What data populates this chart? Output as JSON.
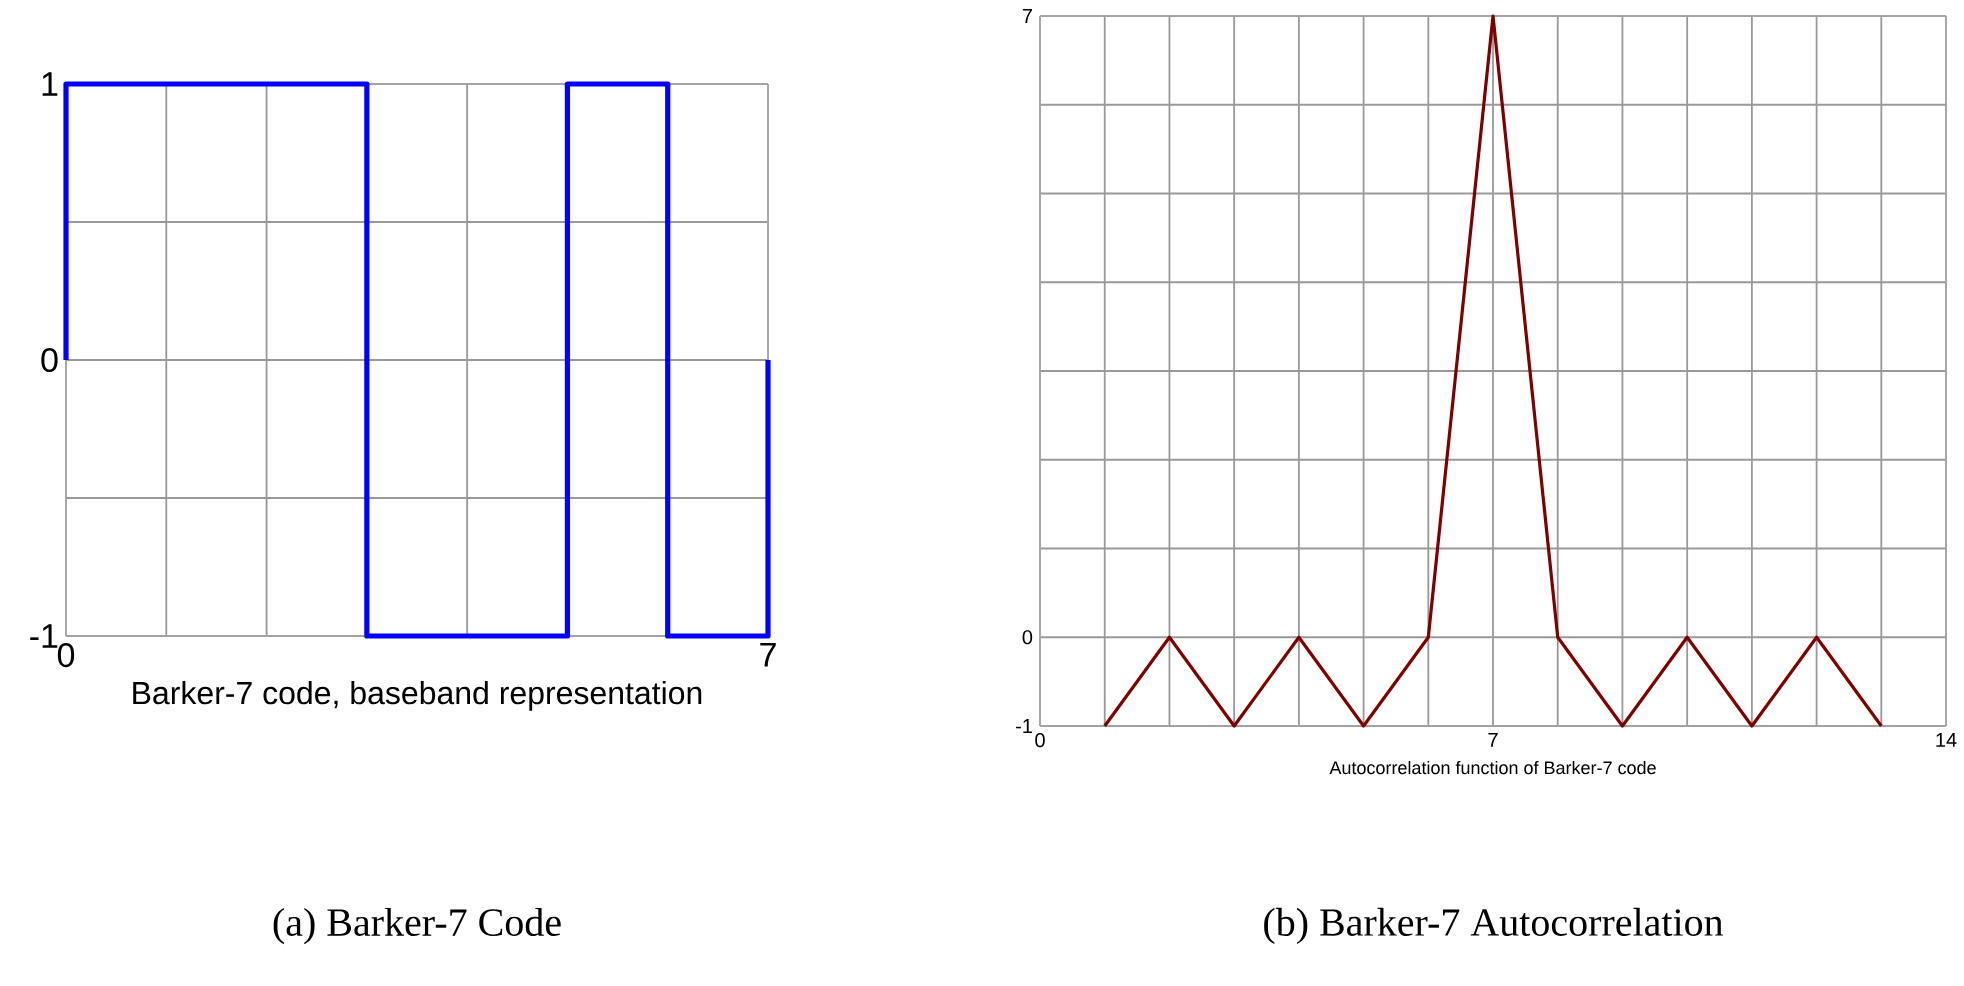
{
  "chart_data": [
    {
      "type": "line",
      "xlabel": "Barker-7 code, baseband representation",
      "annotations": [
        "(a) Barker-7 Code"
      ],
      "series": [
        {
          "color": "#0000ff",
          "x": [
            0,
            0,
            3,
            3,
            5,
            5,
            6,
            6,
            7,
            7
          ],
          "values": [
            0,
            1,
            1,
            -1,
            -1,
            1,
            1,
            -1,
            -1,
            0
          ]
        }
      ],
      "xlim": [
        0,
        7
      ],
      "ylim": [
        -1,
        1
      ],
      "xticks": [
        0,
        {
          "value": 1,
          "label": null
        },
        {
          "value": 2,
          "label": null
        },
        {
          "value": 3,
          "label": null
        },
        {
          "value": 4,
          "label": null
        },
        {
          "value": 5,
          "label": null
        },
        {
          "value": 6,
          "label": null
        },
        7
      ],
      "yticks": [
        -1,
        {
          "value": -0.5,
          "label": null
        },
        0,
        {
          "value": 0.5,
          "label": null
        },
        1
      ],
      "grid": true
    },
    {
      "type": "line",
      "xlabel": "Autocorrelation function of Barker-7 code",
      "annotations": [
        "(b) Barker-7 Autocorrelation"
      ],
      "series": [
        {
          "color": "#800000",
          "x": [
            1,
            2,
            3,
            4,
            5,
            6,
            7,
            8,
            9,
            10,
            11,
            12,
            13
          ],
          "values": [
            -1,
            0,
            -1,
            0,
            -1,
            0,
            7,
            0,
            -1,
            0,
            -1,
            0,
            -1
          ]
        }
      ],
      "xlim": [
        0,
        14
      ],
      "ylim": [
        -1,
        7
      ],
      "xticks": [
        0,
        {
          "value": 1,
          "label": null
        },
        {
          "value": 2,
          "label": null
        },
        {
          "value": 3,
          "label": null
        },
        {
          "value": 4,
          "label": null
        },
        {
          "value": 5,
          "label": null
        },
        {
          "value": 6,
          "label": null
        },
        7,
        {
          "value": 8,
          "label": null
        },
        {
          "value": 9,
          "label": null
        },
        {
          "value": 10,
          "label": null
        },
        {
          "value": 11,
          "label": null
        },
        {
          "value": 12,
          "label": null
        },
        {
          "value": 13,
          "label": null
        },
        14
      ],
      "yticks": [
        -1,
        0,
        {
          "value": 1,
          "label": null
        },
        {
          "value": 2,
          "label": null
        },
        {
          "value": 3,
          "label": null
        },
        {
          "value": 4,
          "label": null
        },
        {
          "value": 5,
          "label": null
        },
        {
          "value": 6,
          "label": null
        },
        7
      ],
      "grid": true
    }
  ]
}
